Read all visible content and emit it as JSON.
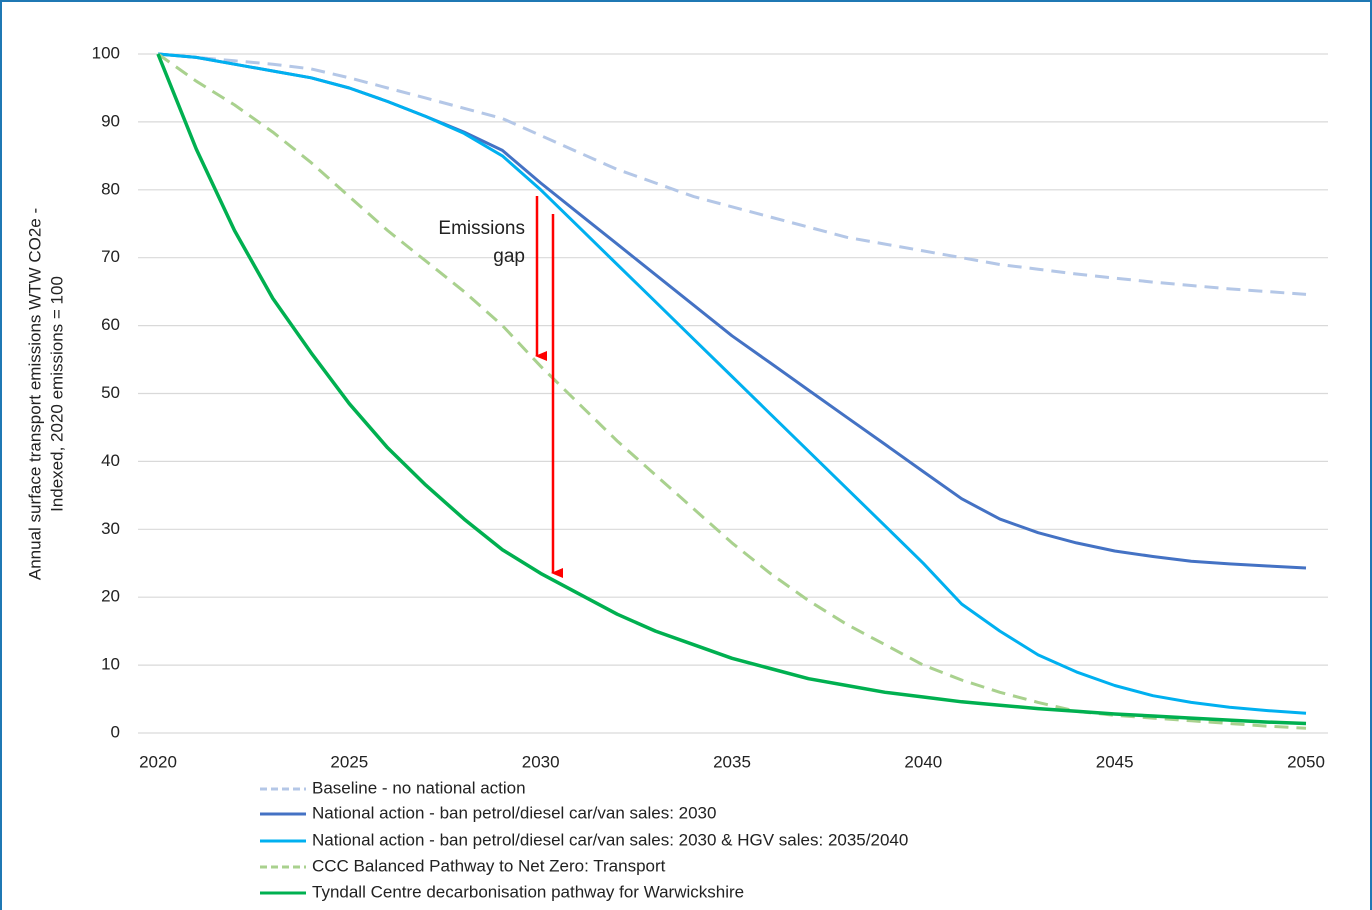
{
  "chart_data": {
    "type": "line",
    "ylabel": [
      "Annual surface transport emissions WTW CO2e -",
      "Indexed, 2020 emissions = 100"
    ],
    "annotation": [
      "Emissions",
      "gap"
    ],
    "annotation_color": "#ff0000",
    "x": [
      2020,
      2021,
      2022,
      2023,
      2024,
      2025,
      2026,
      2027,
      2028,
      2029,
      2030,
      2031,
      2032,
      2033,
      2034,
      2035,
      2036,
      2037,
      2038,
      2039,
      2040,
      2041,
      2042,
      2043,
      2044,
      2045,
      2046,
      2047,
      2048,
      2049,
      2050
    ],
    "xlim": [
      2020,
      2050
    ],
    "xticks": [
      2020,
      2025,
      2030,
      2035,
      2040,
      2045,
      2050
    ],
    "ylim": [
      0,
      100
    ],
    "yticks": [
      0,
      10,
      20,
      30,
      40,
      50,
      60,
      70,
      80,
      90,
      100
    ],
    "grid": true,
    "legend": "bottom",
    "series": [
      {
        "name": "Baseline - no national action",
        "color": "#b4c7e7",
        "style": "dashed",
        "values": [
          100,
          99.5,
          99,
          98.5,
          97.8,
          96.5,
          95,
          93.5,
          92,
          90.5,
          88,
          85.5,
          83,
          81,
          79,
          77.5,
          76,
          74.5,
          73,
          72,
          71,
          70,
          69,
          68.3,
          67.6,
          67,
          66.4,
          65.9,
          65.4,
          65,
          64.6
        ]
      },
      {
        "name": "National action - ban petrol/diesel car/van sales: 2030",
        "color": "#4472c4",
        "style": "solid",
        "values": [
          100,
          99.5,
          98.5,
          97.5,
          96.5,
          95,
          93,
          90.8,
          88.5,
          85.8,
          81,
          76.5,
          72,
          67.5,
          63,
          58.5,
          54.5,
          50.5,
          46.5,
          42.5,
          38.5,
          34.5,
          31.5,
          29.5,
          28,
          26.8,
          26,
          25.3,
          24.9,
          24.6,
          24.3
        ]
      },
      {
        "name": "National action - ban petrol/diesel car/van sales: 2030 & HGV sales: 2035/2040",
        "color": "#00b0f0",
        "style": "solid",
        "values": [
          100,
          99.5,
          98.5,
          97.5,
          96.5,
          95,
          93,
          90.8,
          88.3,
          85,
          80,
          74.5,
          69,
          63.5,
          58,
          52.5,
          47,
          41.5,
          36,
          30.5,
          25,
          19,
          15,
          11.5,
          9,
          7,
          5.5,
          4.5,
          3.8,
          3.3,
          2.9
        ]
      },
      {
        "name": "CCC Balanced Pathway to Net Zero: Transport",
        "color": "#a9d18e",
        "style": "dashed",
        "values": [
          100,
          96,
          92.5,
          88.5,
          84,
          79,
          74,
          69.5,
          65,
          60,
          54,
          48.5,
          43,
          38,
          33,
          28,
          23.5,
          19.5,
          16,
          13,
          10,
          7.8,
          6,
          4.5,
          3.2,
          2.6,
          2.2,
          1.8,
          1.4,
          1,
          0.7
        ]
      },
      {
        "name": "Tyndall Centre decarbonisation pathway for Warwickshire",
        "color": "#00b050",
        "style": "solid",
        "values": [
          100,
          86,
          74,
          64,
          56,
          48.5,
          42,
          36.5,
          31.5,
          27,
          23.5,
          20.5,
          17.5,
          15,
          13,
          11,
          9.5,
          8,
          7,
          6,
          5.3,
          4.6,
          4.1,
          3.6,
          3.2,
          2.8,
          2.5,
          2.2,
          1.9,
          1.6,
          1.4
        ]
      }
    ]
  }
}
